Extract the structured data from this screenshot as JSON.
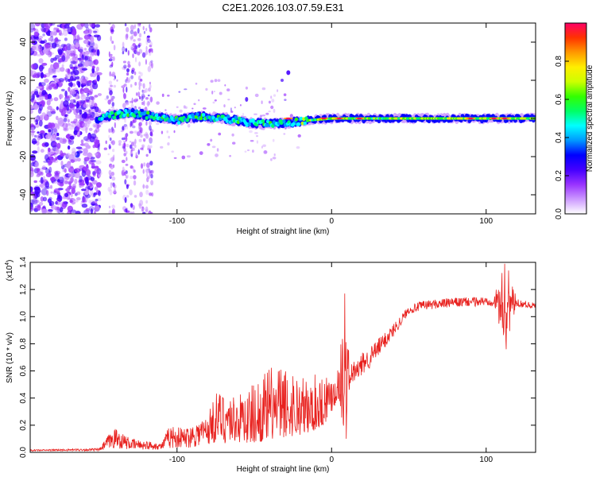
{
  "title": "C2E1.2026.103.07.59.E31",
  "chart_data": [
    {
      "type": "heatmap",
      "xlabel": "Height of straight line (km)",
      "ylabel": "Frequency (Hz)",
      "xlim": [
        -195,
        132
      ],
      "ylim": [
        -50,
        50
      ],
      "xticks": [
        -100,
        0,
        100
      ],
      "yticks": [
        -40,
        -20,
        0,
        20,
        40
      ],
      "xtick_labels": [
        "-100",
        "0",
        "100"
      ],
      "ytick_labels": [
        "-40",
        "-20",
        "0",
        "20",
        "40"
      ],
      "colorbar": {
        "label": "Normalized spectral amplitude",
        "range": [
          0,
          1
        ],
        "ticks": [
          0.0,
          0.2,
          0.4,
          0.6,
          0.8
        ],
        "tick_labels": [
          "0.0",
          "0.2",
          "0.4",
          "0.6",
          "0.8"
        ],
        "colors": [
          "#ffffff",
          "#cc99ff",
          "#9933ff",
          "#4400ff",
          "#0000ff",
          "#0099ff",
          "#00ffff",
          "#00ff66",
          "#33ff00",
          "#ccff00",
          "#ffee00",
          "#ff9900",
          "#ff3300",
          "#ff0066"
        ]
      },
      "ridge": [
        {
          "x": -150,
          "f": 0
        },
        {
          "x": -140,
          "f": 2
        },
        {
          "x": -130,
          "f": 3
        },
        {
          "x": -115,
          "f": 1
        },
        {
          "x": -100,
          "f": -1
        },
        {
          "x": -85,
          "f": 1
        },
        {
          "x": -70,
          "f": 0
        },
        {
          "x": -55,
          "f": -2
        },
        {
          "x": -40,
          "f": -3
        },
        {
          "x": -25,
          "f": -2
        },
        {
          "x": -15,
          "f": -1
        },
        {
          "x": 0,
          "f": 0
        },
        {
          "x": 20,
          "f": 0
        },
        {
          "x": 60,
          "f": 0
        },
        {
          "x": 100,
          "f": 0
        },
        {
          "x": 132,
          "f": 0
        }
      ]
    },
    {
      "type": "line",
      "xlabel": "Height of straight line (km)",
      "ylabel": "SNR (10 * v/v)",
      "multiplier_label": "(x10",
      "multiplier_exp": "4",
      "color": "#e8211e",
      "xlim": [
        -195,
        132
      ],
      "ylim": [
        0,
        1.4
      ],
      "xticks": [
        -100,
        0,
        100
      ],
      "yticks": [
        0.0,
        0.2,
        0.4,
        0.6,
        0.8,
        1.0,
        1.2,
        1.4
      ],
      "xtick_labels": [
        "-100",
        "0",
        "100"
      ],
      "ytick_labels": [
        "0.0",
        "0.2",
        "0.4",
        "0.6",
        "0.8",
        "1.0",
        "1.2",
        "1.4"
      ],
      "envelope": [
        {
          "x": -195,
          "base": 0.01,
          "peak": 0.02
        },
        {
          "x": -150,
          "base": 0.01,
          "peak": 0.03
        },
        {
          "x": -145,
          "base": 0.02,
          "peak": 0.12
        },
        {
          "x": -140,
          "base": 0.03,
          "peak": 0.18
        },
        {
          "x": -130,
          "base": 0.02,
          "peak": 0.1
        },
        {
          "x": -110,
          "base": 0.02,
          "peak": 0.07
        },
        {
          "x": -105,
          "base": 0.03,
          "peak": 0.2
        },
        {
          "x": -95,
          "base": 0.03,
          "peak": 0.18
        },
        {
          "x": -80,
          "base": 0.05,
          "peak": 0.28
        },
        {
          "x": -75,
          "base": 0.06,
          "peak": 0.45
        },
        {
          "x": -60,
          "base": 0.06,
          "peak": 0.42
        },
        {
          "x": -45,
          "base": 0.08,
          "peak": 0.58
        },
        {
          "x": -38,
          "base": 0.1,
          "peak": 0.66
        },
        {
          "x": -25,
          "base": 0.12,
          "peak": 0.63
        },
        {
          "x": -15,
          "base": 0.14,
          "peak": 0.55
        },
        {
          "x": -5,
          "base": 0.2,
          "peak": 0.62
        },
        {
          "x": 5,
          "base": 0.4,
          "peak": 0.66
        },
        {
          "x": 8,
          "base": 0.1,
          "peak": 1.17
        },
        {
          "x": 12,
          "base": 0.5,
          "peak": 0.66
        },
        {
          "x": 25,
          "base": 0.62,
          "peak": 0.78
        },
        {
          "x": 40,
          "base": 0.85,
          "peak": 0.95
        },
        {
          "x": 50,
          "base": 1.02,
          "peak": 1.08
        },
        {
          "x": 60,
          "base": 1.05,
          "peak": 1.12
        },
        {
          "x": 80,
          "base": 1.07,
          "peak": 1.14
        },
        {
          "x": 105,
          "base": 1.08,
          "peak": 1.15
        },
        {
          "x": 112,
          "base": 0.76,
          "peak": 1.39
        },
        {
          "x": 120,
          "base": 1.07,
          "peak": 1.13
        },
        {
          "x": 132,
          "base": 1.06,
          "peak": 1.1
        }
      ]
    }
  ]
}
